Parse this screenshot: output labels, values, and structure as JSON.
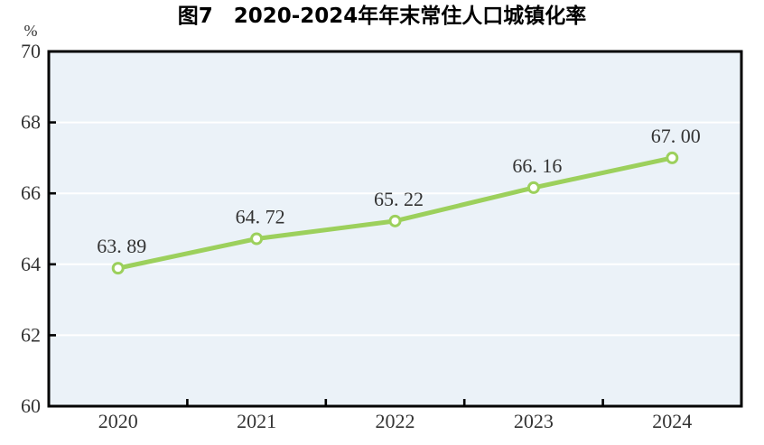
{
  "figure": {
    "title": "图7　2020-2024年年末常住人口城镇化率",
    "unit_label": "%"
  },
  "colors": {
    "line": "#9CD05C",
    "marker_fill": "#FFFFFF",
    "plot_bg": "#EBF2F8",
    "grid": "#FFFFFF",
    "axis": "#000000",
    "label_text": "#333333",
    "title_text": "#000000"
  },
  "chart_data": {
    "type": "line",
    "title": "图7　2020-2024年年末常住人口城镇化率",
    "categories": [
      "2020",
      "2021",
      "2022",
      "2023",
      "2024"
    ],
    "values": [
      63.89,
      64.72,
      65.22,
      66.16,
      67.0
    ],
    "data_labels": [
      "63. 89",
      "64. 72",
      "65. 22",
      "66. 16",
      "67. 00"
    ],
    "xlabel": "",
    "ylabel": "%",
    "ylim": [
      60,
      70
    ],
    "yticks": [
      60,
      62,
      64,
      66,
      68,
      70
    ],
    "grid": true,
    "legend": false,
    "marker": "open-circle"
  }
}
